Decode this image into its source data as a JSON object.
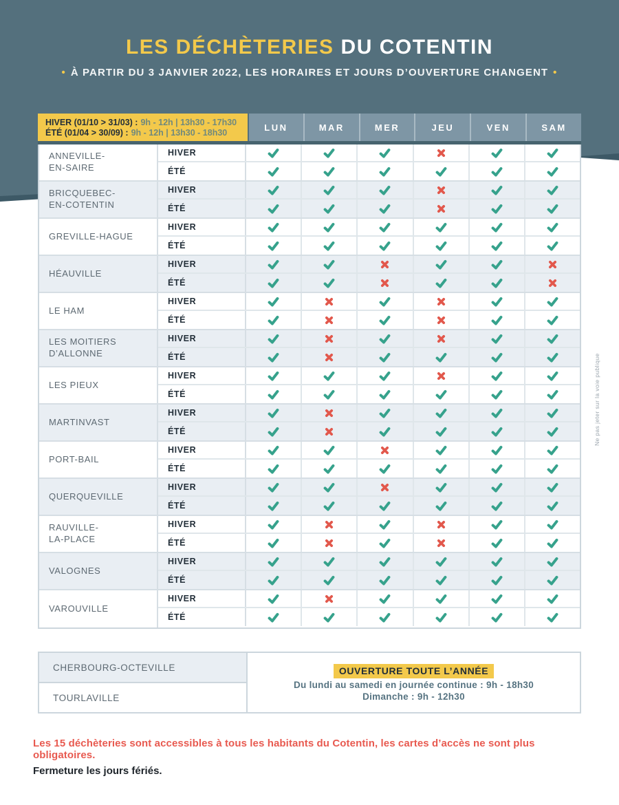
{
  "header": {
    "title_part1": "LES DÉCHÈTERIES",
    "title_part2": "DU COTENTIN",
    "bullet": "•",
    "subtitle": "À PARTIR DU 3 JANVIER 2022, LES HORAIRES ET JOURS D’OUVERTURE CHANGENT"
  },
  "legend": {
    "winter_label": "HIVER (01/10 > 31/03) :",
    "winter_hours": "9h - 12h | 13h30 - 17h30",
    "summer_label": "ÉTÉ (01/04 > 30/09) :",
    "summer_hours": "9h - 12h | 13h30 - 18h30"
  },
  "days": [
    "LUN",
    "MAR",
    "MER",
    "JEU",
    "VEN",
    "SAM"
  ],
  "season_labels": {
    "winter": "HIVER",
    "summer": "ÉTÉ"
  },
  "locations": [
    {
      "name_lines": [
        "ANNEVILLE-",
        "EN-SAIRE"
      ],
      "winter": [
        1,
        1,
        1,
        0,
        1,
        1
      ],
      "summer": [
        1,
        1,
        1,
        1,
        1,
        1
      ]
    },
    {
      "name_lines": [
        "BRICQUEBEC-",
        "EN-COTENTIN"
      ],
      "winter": [
        1,
        1,
        1,
        0,
        1,
        1
      ],
      "summer": [
        1,
        1,
        1,
        0,
        1,
        1
      ]
    },
    {
      "name_lines": [
        "GREVILLE-HAGUE"
      ],
      "winter": [
        1,
        1,
        1,
        1,
        1,
        1
      ],
      "summer": [
        1,
        1,
        1,
        1,
        1,
        1
      ]
    },
    {
      "name_lines": [
        "HÉAUVILLE"
      ],
      "winter": [
        1,
        1,
        0,
        1,
        1,
        0
      ],
      "summer": [
        1,
        1,
        0,
        1,
        1,
        0
      ]
    },
    {
      "name_lines": [
        "LE HAM"
      ],
      "winter": [
        1,
        0,
        1,
        0,
        1,
        1
      ],
      "summer": [
        1,
        0,
        1,
        0,
        1,
        1
      ]
    },
    {
      "name_lines": [
        "LES MOITIERS",
        "D’ALLONNE"
      ],
      "winter": [
        1,
        0,
        1,
        0,
        1,
        1
      ],
      "summer": [
        1,
        0,
        1,
        1,
        1,
        1
      ]
    },
    {
      "name_lines": [
        "LES PIEUX"
      ],
      "winter": [
        1,
        1,
        1,
        0,
        1,
        1
      ],
      "summer": [
        1,
        1,
        1,
        1,
        1,
        1
      ]
    },
    {
      "name_lines": [
        "MARTINVAST"
      ],
      "winter": [
        1,
        0,
        1,
        1,
        1,
        1
      ],
      "summer": [
        1,
        0,
        1,
        1,
        1,
        1
      ]
    },
    {
      "name_lines": [
        "PORT-BAIL"
      ],
      "winter": [
        1,
        1,
        0,
        1,
        1,
        1
      ],
      "summer": [
        1,
        1,
        1,
        1,
        1,
        1
      ]
    },
    {
      "name_lines": [
        "QUERQUEVILLE"
      ],
      "winter": [
        1,
        1,
        0,
        1,
        1,
        1
      ],
      "summer": [
        1,
        1,
        1,
        1,
        1,
        1
      ]
    },
    {
      "name_lines": [
        "RAUVILLE-",
        "LA-PLACE"
      ],
      "winter": [
        1,
        0,
        1,
        0,
        1,
        1
      ],
      "summer": [
        1,
        0,
        1,
        0,
        1,
        1
      ]
    },
    {
      "name_lines": [
        "VALOGNES"
      ],
      "winter": [
        1,
        1,
        1,
        1,
        1,
        1
      ],
      "summer": [
        1,
        1,
        1,
        1,
        1,
        1
      ]
    },
    {
      "name_lines": [
        "VAROUVILLE"
      ],
      "winter": [
        1,
        0,
        1,
        1,
        1,
        1
      ],
      "summer": [
        1,
        1,
        1,
        1,
        1,
        1
      ]
    }
  ],
  "year_round": {
    "sites": [
      "CHERBOURG-OCTEVILLE",
      "TOURLAVILLE"
    ],
    "badge": "OUVERTURE TOUTE L’ANNÉE",
    "line1": "Du lundi au samedi en journée continue : 9h - 18h30",
    "line2": "Dimanche : 9h - 12h30"
  },
  "footer": {
    "note_red": "Les 15 déchèteries sont accessibles à tous les habitants du Cotentin, les cartes d’accès ne sont plus obligatoires.",
    "note_dark": "Fermeture les jours fériés."
  },
  "side_note": "Ne pas jeter sur la voie publique",
  "colors": {
    "slate": "#54707d",
    "slate_shadow": "#3d5966",
    "accent_yellow": "#f3c94b",
    "day_header": "#7e96a5",
    "check": "#36a28c",
    "cross": "#e2584c",
    "note_red": "#e85a50",
    "stripe_gray": "#e9eef3"
  }
}
